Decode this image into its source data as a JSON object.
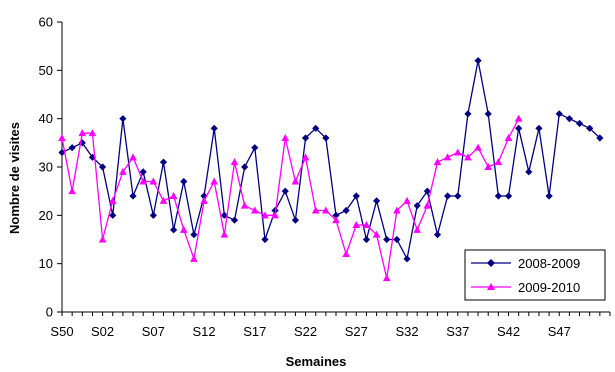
{
  "chart_data": {
    "type": "line",
    "title": "",
    "xlabel": "Semaines",
    "ylabel": "Nombre de visites",
    "ylim": [
      0,
      60
    ],
    "yticks": [
      0,
      10,
      20,
      30,
      40,
      50,
      60
    ],
    "grid": false,
    "legend_position": "bottom-right",
    "categories": [
      "S50",
      "S51",
      "S52",
      "S01",
      "S02",
      "S03",
      "S04",
      "S05",
      "S06",
      "S07",
      "S08",
      "S09",
      "S10",
      "S11",
      "S12",
      "S13",
      "S14",
      "S15",
      "S16",
      "S17",
      "S18",
      "S19",
      "S20",
      "S21",
      "S22",
      "S23",
      "S24",
      "S25",
      "S26",
      "S27",
      "S28",
      "S29",
      "S30",
      "S31",
      "S32",
      "S33",
      "S34",
      "S35",
      "S36",
      "S37",
      "S38",
      "S39",
      "S40",
      "S41",
      "S42",
      "S43",
      "S44",
      "S45",
      "S46",
      "S47",
      "S48",
      "S49",
      "S50",
      "S51",
      "S52"
    ],
    "tick_labels": [
      "S50",
      "S02",
      "S07",
      "S12",
      "S17",
      "S22",
      "S27",
      "S32",
      "S37",
      "S42",
      "S47"
    ],
    "tick_label_indices": [
      0,
      4,
      9,
      14,
      19,
      24,
      29,
      34,
      39,
      44,
      49
    ],
    "series": [
      {
        "name": "2008-2009",
        "color": "#000080",
        "marker": "diamond",
        "values": [
          33,
          34,
          35,
          32,
          30,
          20,
          40,
          24,
          29,
          20,
          31,
          17,
          27,
          16,
          24,
          38,
          20,
          19,
          30,
          34,
          15,
          21,
          25,
          19,
          36,
          38,
          36,
          20,
          21,
          24,
          15,
          23,
          15,
          15,
          11,
          22,
          25,
          16,
          24,
          24,
          41,
          52,
          41,
          24,
          24,
          38,
          29,
          38,
          24,
          41,
          40,
          39,
          38,
          36,
          null
        ]
      },
      {
        "name": "2009-2010",
        "color": "#ff00ff",
        "marker": "triangle",
        "values": [
          36,
          25,
          37,
          37,
          15,
          23,
          29,
          32,
          27,
          27,
          23,
          24,
          17,
          11,
          23,
          27,
          16,
          31,
          22,
          21,
          20,
          20,
          36,
          27,
          32,
          21,
          21,
          19,
          12,
          18,
          18,
          16,
          7,
          21,
          23,
          17,
          22,
          31,
          32,
          33,
          32,
          34,
          30,
          31,
          36,
          40,
          null,
          null,
          null,
          null,
          null,
          null,
          null,
          null,
          null
        ]
      }
    ]
  }
}
